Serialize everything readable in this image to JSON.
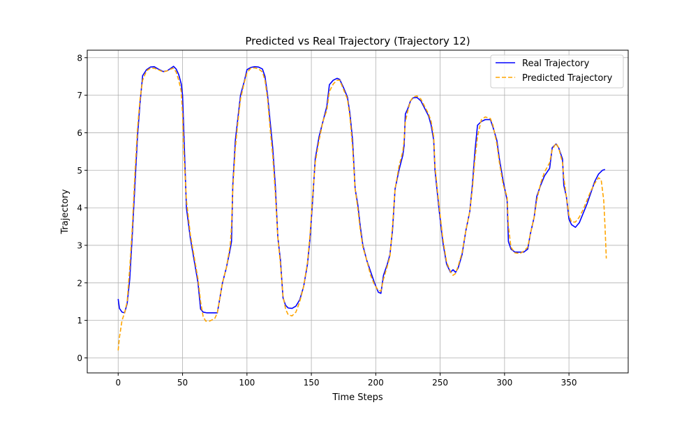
{
  "chart_data": {
    "type": "line",
    "title": "Predicted vs Real Trajectory (Trajectory 12)",
    "xlabel": "Time Steps",
    "ylabel": "Trajectory",
    "xlim": [
      -24,
      396
    ],
    "ylim": [
      -0.4,
      8.2
    ],
    "xticks": [
      0,
      50,
      100,
      150,
      200,
      250,
      300,
      350
    ],
    "yticks": [
      0,
      1,
      2,
      3,
      4,
      5,
      6,
      7,
      8
    ],
    "grid": true,
    "legend_position": "top-right",
    "series": [
      {
        "name": "Real Trajectory",
        "color": "#0000ff",
        "style": "solid",
        "points": [
          [
            0,
            1.57
          ],
          [
            1,
            1.32
          ],
          [
            3,
            1.22
          ],
          [
            5,
            1.2
          ],
          [
            7,
            1.45
          ],
          [
            9,
            2.1
          ],
          [
            11,
            3.3
          ],
          [
            13,
            4.6
          ],
          [
            15,
            5.9
          ],
          [
            17,
            6.8
          ],
          [
            19,
            7.52
          ],
          [
            22,
            7.68
          ],
          [
            25,
            7.75
          ],
          [
            28,
            7.76
          ],
          [
            31,
            7.7
          ],
          [
            35,
            7.63
          ],
          [
            38,
            7.65
          ],
          [
            41,
            7.72
          ],
          [
            43,
            7.77
          ],
          [
            45,
            7.7
          ],
          [
            47,
            7.55
          ],
          [
            49,
            7.3
          ],
          [
            50,
            7.0
          ],
          [
            51,
            6.0
          ],
          [
            53,
            4.0
          ],
          [
            56,
            3.2
          ],
          [
            59,
            2.6
          ],
          [
            62,
            2.0
          ],
          [
            64,
            1.3
          ],
          [
            66,
            1.22
          ],
          [
            69,
            1.2
          ],
          [
            73,
            1.2
          ],
          [
            77,
            1.2
          ],
          [
            79,
            1.6
          ],
          [
            81,
            2.0
          ],
          [
            84,
            2.4
          ],
          [
            87,
            2.9
          ],
          [
            88,
            3.1
          ],
          [
            89,
            4.6
          ],
          [
            91,
            5.8
          ],
          [
            93,
            6.4
          ],
          [
            95,
            7.0
          ],
          [
            98,
            7.38
          ],
          [
            100,
            7.68
          ],
          [
            103,
            7.74
          ],
          [
            106,
            7.76
          ],
          [
            109,
            7.75
          ],
          [
            112,
            7.7
          ],
          [
            114,
            7.5
          ],
          [
            116,
            7.0
          ],
          [
            118,
            6.3
          ],
          [
            120,
            5.6
          ],
          [
            122,
            4.6
          ],
          [
            124,
            3.2
          ],
          [
            126,
            2.6
          ],
          [
            128,
            1.6
          ],
          [
            130,
            1.4
          ],
          [
            132,
            1.33
          ],
          [
            135,
            1.32
          ],
          [
            138,
            1.38
          ],
          [
            141,
            1.55
          ],
          [
            144,
            1.9
          ],
          [
            147,
            2.5
          ],
          [
            149,
            3.2
          ],
          [
            151,
            4.2
          ],
          [
            153,
            5.3
          ],
          [
            156,
            5.9
          ],
          [
            159,
            6.3
          ],
          [
            162,
            6.7
          ],
          [
            164,
            7.28
          ],
          [
            167,
            7.4
          ],
          [
            170,
            7.45
          ],
          [
            172,
            7.42
          ],
          [
            175,
            7.2
          ],
          [
            178,
            6.95
          ],
          [
            180,
            6.5
          ],
          [
            182,
            5.8
          ],
          [
            184,
            4.5
          ],
          [
            186,
            4.1
          ],
          [
            188,
            3.5
          ],
          [
            190,
            3.0
          ],
          [
            193,
            2.6
          ],
          [
            196,
            2.3
          ],
          [
            199,
            2.0
          ],
          [
            202,
            1.75
          ],
          [
            204,
            1.72
          ],
          [
            206,
            2.2
          ],
          [
            209,
            2.5
          ],
          [
            211,
            2.75
          ],
          [
            213,
            3.4
          ],
          [
            215,
            4.5
          ],
          [
            218,
            5.0
          ],
          [
            221,
            5.4
          ],
          [
            222,
            5.65
          ],
          [
            223,
            6.5
          ],
          [
            225,
            6.65
          ],
          [
            227,
            6.85
          ],
          [
            229,
            6.93
          ],
          [
            232,
            6.94
          ],
          [
            235,
            6.85
          ],
          [
            238,
            6.65
          ],
          [
            241,
            6.45
          ],
          [
            243,
            6.2
          ],
          [
            245,
            5.8
          ],
          [
            246,
            5.0
          ],
          [
            249,
            4.0
          ],
          [
            252,
            3.1
          ],
          [
            255,
            2.5
          ],
          [
            258,
            2.28
          ],
          [
            260,
            2.35
          ],
          [
            262,
            2.28
          ],
          [
            264,
            2.4
          ],
          [
            267,
            2.75
          ],
          [
            270,
            3.4
          ],
          [
            273,
            3.9
          ],
          [
            275,
            4.6
          ],
          [
            277,
            5.5
          ],
          [
            279,
            6.2
          ],
          [
            282,
            6.3
          ],
          [
            285,
            6.35
          ],
          [
            289,
            6.35
          ],
          [
            291,
            6.15
          ],
          [
            294,
            5.8
          ],
          [
            296,
            5.3
          ],
          [
            299,
            4.7
          ],
          [
            302,
            4.2
          ],
          [
            303,
            3.1
          ],
          [
            305,
            2.9
          ],
          [
            308,
            2.82
          ],
          [
            312,
            2.82
          ],
          [
            315,
            2.82
          ],
          [
            318,
            2.9
          ],
          [
            320,
            3.3
          ],
          [
            323,
            3.75
          ],
          [
            325,
            4.3
          ],
          [
            328,
            4.6
          ],
          [
            331,
            4.85
          ],
          [
            335,
            5.05
          ],
          [
            337,
            5.6
          ],
          [
            340,
            5.7
          ],
          [
            342,
            5.6
          ],
          [
            345,
            5.3
          ],
          [
            346,
            4.6
          ],
          [
            348,
            4.3
          ],
          [
            350,
            3.7
          ],
          [
            352,
            3.55
          ],
          [
            355,
            3.48
          ],
          [
            358,
            3.6
          ],
          [
            361,
            3.85
          ],
          [
            364,
            4.1
          ],
          [
            367,
            4.4
          ],
          [
            370,
            4.7
          ],
          [
            373,
            4.9
          ],
          [
            376,
            5.0
          ],
          [
            378,
            5.02
          ]
        ]
      },
      {
        "name": "Predicted Trajectory",
        "color": "#ffa500",
        "style": "dashed",
        "points": [
          [
            0,
            0.2
          ],
          [
            1,
            0.55
          ],
          [
            3,
            1.0
          ],
          [
            5,
            1.2
          ],
          [
            7,
            1.5
          ],
          [
            9,
            2.4
          ],
          [
            11,
            3.5
          ],
          [
            13,
            4.9
          ],
          [
            15,
            6.1
          ],
          [
            17,
            6.9
          ],
          [
            19,
            7.4
          ],
          [
            22,
            7.65
          ],
          [
            25,
            7.72
          ],
          [
            28,
            7.72
          ],
          [
            31,
            7.68
          ],
          [
            35,
            7.62
          ],
          [
            38,
            7.65
          ],
          [
            41,
            7.7
          ],
          [
            43,
            7.72
          ],
          [
            45,
            7.62
          ],
          [
            47,
            7.4
          ],
          [
            49,
            7.1
          ],
          [
            50,
            6.5
          ],
          [
            51,
            5.5
          ],
          [
            53,
            4.2
          ],
          [
            56,
            3.3
          ],
          [
            59,
            2.7
          ],
          [
            62,
            2.1
          ],
          [
            64,
            1.5
          ],
          [
            66,
            1.1
          ],
          [
            68,
            0.98
          ],
          [
            71,
            0.98
          ],
          [
            75,
            1.05
          ],
          [
            77,
            1.2
          ],
          [
            79,
            1.6
          ],
          [
            81,
            2.0
          ],
          [
            84,
            2.4
          ],
          [
            87,
            3.0
          ],
          [
            88,
            3.5
          ],
          [
            89,
            4.5
          ],
          [
            91,
            5.6
          ],
          [
            93,
            6.3
          ],
          [
            95,
            6.9
          ],
          [
            98,
            7.35
          ],
          [
            100,
            7.6
          ],
          [
            103,
            7.72
          ],
          [
            106,
            7.73
          ],
          [
            109,
            7.7
          ],
          [
            112,
            7.62
          ],
          [
            114,
            7.4
          ],
          [
            116,
            6.9
          ],
          [
            118,
            6.1
          ],
          [
            120,
            5.4
          ],
          [
            122,
            4.4
          ],
          [
            124,
            3.2
          ],
          [
            126,
            2.5
          ],
          [
            128,
            1.65
          ],
          [
            130,
            1.3
          ],
          [
            132,
            1.15
          ],
          [
            135,
            1.12
          ],
          [
            138,
            1.22
          ],
          [
            141,
            1.5
          ],
          [
            144,
            1.9
          ],
          [
            147,
            2.55
          ],
          [
            149,
            3.3
          ],
          [
            151,
            4.3
          ],
          [
            153,
            5.2
          ],
          [
            156,
            5.8
          ],
          [
            159,
            6.3
          ],
          [
            162,
            6.6
          ],
          [
            164,
            7.1
          ],
          [
            167,
            7.3
          ],
          [
            170,
            7.4
          ],
          [
            172,
            7.4
          ],
          [
            175,
            7.15
          ],
          [
            178,
            6.9
          ],
          [
            180,
            6.4
          ],
          [
            182,
            5.6
          ],
          [
            184,
            4.5
          ],
          [
            186,
            4.0
          ],
          [
            188,
            3.4
          ],
          [
            190,
            2.95
          ],
          [
            193,
            2.6
          ],
          [
            196,
            2.2
          ],
          [
            199,
            1.95
          ],
          [
            202,
            1.8
          ],
          [
            204,
            1.78
          ],
          [
            206,
            2.1
          ],
          [
            209,
            2.45
          ],
          [
            211,
            2.7
          ],
          [
            213,
            3.5
          ],
          [
            215,
            4.5
          ],
          [
            218,
            5.1
          ],
          [
            221,
            5.5
          ],
          [
            222,
            5.8
          ],
          [
            223,
            6.3
          ],
          [
            225,
            6.6
          ],
          [
            227,
            6.85
          ],
          [
            229,
            6.95
          ],
          [
            232,
            6.98
          ],
          [
            235,
            6.9
          ],
          [
            238,
            6.7
          ],
          [
            241,
            6.5
          ],
          [
            243,
            6.3
          ],
          [
            245,
            5.9
          ],
          [
            246,
            5.1
          ],
          [
            249,
            4.1
          ],
          [
            252,
            3.2
          ],
          [
            255,
            2.55
          ],
          [
            258,
            2.3
          ],
          [
            260,
            2.2
          ],
          [
            262,
            2.25
          ],
          [
            264,
            2.45
          ],
          [
            267,
            2.8
          ],
          [
            270,
            3.4
          ],
          [
            273,
            3.9
          ],
          [
            275,
            4.5
          ],
          [
            277,
            5.3
          ],
          [
            279,
            5.9
          ],
          [
            282,
            6.35
          ],
          [
            285,
            6.42
          ],
          [
            289,
            6.38
          ],
          [
            291,
            6.2
          ],
          [
            294,
            5.7
          ],
          [
            296,
            5.2
          ],
          [
            299,
            4.6
          ],
          [
            302,
            4.3
          ],
          [
            303,
            3.5
          ],
          [
            305,
            2.95
          ],
          [
            308,
            2.8
          ],
          [
            312,
            2.78
          ],
          [
            315,
            2.85
          ],
          [
            318,
            2.95
          ],
          [
            320,
            3.3
          ],
          [
            323,
            3.75
          ],
          [
            325,
            4.2
          ],
          [
            328,
            4.65
          ],
          [
            331,
            4.95
          ],
          [
            335,
            5.2
          ],
          [
            337,
            5.55
          ],
          [
            340,
            5.72
          ],
          [
            342,
            5.6
          ],
          [
            345,
            5.2
          ],
          [
            346,
            4.8
          ],
          [
            348,
            4.3
          ],
          [
            350,
            3.8
          ],
          [
            352,
            3.62
          ],
          [
            355,
            3.62
          ],
          [
            358,
            3.75
          ],
          [
            361,
            3.95
          ],
          [
            364,
            4.2
          ],
          [
            367,
            4.45
          ],
          [
            370,
            4.65
          ],
          [
            373,
            4.8
          ],
          [
            375,
            4.75
          ],
          [
            377,
            4.2
          ],
          [
            378,
            3.5
          ],
          [
            379,
            2.65
          ]
        ]
      }
    ]
  }
}
